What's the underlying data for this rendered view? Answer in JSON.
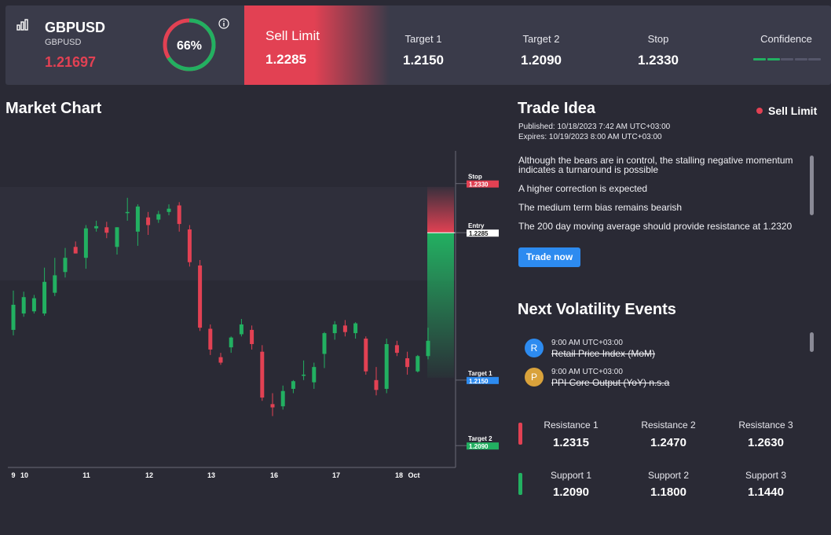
{
  "header": {
    "symbol": "GBPUSD",
    "symbol_sub": "GBPUSD",
    "price": "1.21697",
    "gauge_percent": 66,
    "gauge_text": "66%",
    "signal_label": "Sell Limit",
    "signal_value": "1.2285",
    "columns": [
      {
        "label": "Target 1",
        "value": "1.2150"
      },
      {
        "label": "Target 2",
        "value": "1.2090"
      },
      {
        "label": "Stop",
        "value": "1.2330"
      },
      {
        "label": "Confidence",
        "value": ""
      }
    ],
    "confidence_level": 2,
    "confidence_total": 5,
    "colors": {
      "sell": "#e24153",
      "buy": "#22b061",
      "confidence": "#22b061"
    }
  },
  "chart": {
    "title": "Market Chart",
    "x_ticks": [
      "9",
      "10",
      "11",
      "12",
      "13",
      "16",
      "17",
      "18",
      "Oct"
    ],
    "tags": {
      "stop": {
        "label": "Stop",
        "value": "1.2330"
      },
      "entry": {
        "label": "Entry",
        "value": "1.2285"
      },
      "target1": {
        "label": "Target 1",
        "value": "1.2150"
      },
      "target2": {
        "label": "Target 2",
        "value": "1.2090"
      }
    }
  },
  "chart_data": {
    "type": "candlestick",
    "ylim": [
      1.207,
      1.236
    ],
    "x_ticks": [
      "9",
      "10",
      "11",
      "12",
      "13",
      "16",
      "17",
      "18",
      "Oct"
    ],
    "levels": {
      "stop": 1.233,
      "entry": 1.2285,
      "target1": 1.215,
      "target2": 1.209
    },
    "colors": {
      "up": "#22b061",
      "down": "#e24153"
    },
    "candles": [
      {
        "o": 1.2196,
        "h": 1.2232,
        "l": 1.2191,
        "c": 1.2219
      },
      {
        "o": 1.2211,
        "h": 1.2231,
        "l": 1.2208,
        "c": 1.2226
      },
      {
        "o": 1.2213,
        "h": 1.2228,
        "l": 1.2211,
        "c": 1.2225
      },
      {
        "o": 1.2211,
        "h": 1.2253,
        "l": 1.2209,
        "c": 1.224
      },
      {
        "o": 1.223,
        "h": 1.2262,
        "l": 1.2227,
        "c": 1.2246
      },
      {
        "o": 1.2249,
        "h": 1.2271,
        "l": 1.2244,
        "c": 1.2262
      },
      {
        "o": 1.2272,
        "h": 1.2277,
        "l": 1.2266,
        "c": 1.2266
      },
      {
        "o": 1.2262,
        "h": 1.2292,
        "l": 1.2252,
        "c": 1.2289
      },
      {
        "o": 1.2289,
        "h": 1.2296,
        "l": 1.2286,
        "c": 1.2291
      },
      {
        "o": 1.229,
        "h": 1.2295,
        "l": 1.228,
        "c": 1.2285
      },
      {
        "o": 1.2272,
        "h": 1.229,
        "l": 1.2265,
        "c": 1.229
      },
      {
        "o": 1.2304,
        "h": 1.2317,
        "l": 1.2296,
        "c": 1.2304
      },
      {
        "o": 1.2286,
        "h": 1.2311,
        "l": 1.2273,
        "c": 1.2309
      },
      {
        "o": 1.2299,
        "h": 1.2304,
        "l": 1.2283,
        "c": 1.2292
      },
      {
        "o": 1.2297,
        "h": 1.2305,
        "l": 1.2294,
        "c": 1.2302
      },
      {
        "o": 1.2304,
        "h": 1.2311,
        "l": 1.2301,
        "c": 1.2307
      },
      {
        "o": 1.231,
        "h": 1.2313,
        "l": 1.2286,
        "c": 1.2293
      },
      {
        "o": 1.2288,
        "h": 1.2292,
        "l": 1.2254,
        "c": 1.2258
      },
      {
        "o": 1.2255,
        "h": 1.226,
        "l": 1.2195,
        "c": 1.2198
      },
      {
        "o": 1.2197,
        "h": 1.2201,
        "l": 1.2173,
        "c": 1.2178
      },
      {
        "o": 1.2171,
        "h": 1.2175,
        "l": 1.2164,
        "c": 1.2166
      },
      {
        "o": 1.218,
        "h": 1.219,
        "l": 1.2175,
        "c": 1.2189
      },
      {
        "o": 1.2192,
        "h": 1.2206,
        "l": 1.219,
        "c": 1.2201
      },
      {
        "o": 1.2196,
        "h": 1.22,
        "l": 1.2178,
        "c": 1.2183
      },
      {
        "o": 1.2176,
        "h": 1.2182,
        "l": 1.2131,
        "c": 1.2134
      },
      {
        "o": 1.2128,
        "h": 1.2138,
        "l": 1.2117,
        "c": 1.2125
      },
      {
        "o": 1.2126,
        "h": 1.2145,
        "l": 1.2123,
        "c": 1.214
      },
      {
        "o": 1.2142,
        "h": 1.215,
        "l": 1.2138,
        "c": 1.2149
      },
      {
        "o": 1.2155,
        "h": 1.2168,
        "l": 1.215,
        "c": 1.2155
      },
      {
        "o": 1.2148,
        "h": 1.2166,
        "l": 1.2142,
        "c": 1.2162
      },
      {
        "o": 1.2174,
        "h": 1.2194,
        "l": 1.2161,
        "c": 1.2193
      },
      {
        "o": 1.2193,
        "h": 1.2204,
        "l": 1.2187,
        "c": 1.2201
      },
      {
        "o": 1.22,
        "h": 1.2205,
        "l": 1.219,
        "c": 1.2194
      },
      {
        "o": 1.2193,
        "h": 1.2203,
        "l": 1.2188,
        "c": 1.2202
      },
      {
        "o": 1.2188,
        "h": 1.219,
        "l": 1.2155,
        "c": 1.2158
      },
      {
        "o": 1.215,
        "h": 1.2162,
        "l": 1.2136,
        "c": 1.2141
      },
      {
        "o": 1.2142,
        "h": 1.2188,
        "l": 1.2138,
        "c": 1.2183
      },
      {
        "o": 1.2182,
        "h": 1.2186,
        "l": 1.2172,
        "c": 1.2175
      },
      {
        "o": 1.217,
        "h": 1.2176,
        "l": 1.2155,
        "c": 1.2162
      },
      {
        "o": 1.2158,
        "h": 1.2173,
        "l": 1.2157,
        "c": 1.2172
      },
      {
        "o": 1.2172,
        "h": 1.2198,
        "l": 1.2169,
        "c": 1.2186
      }
    ]
  },
  "trade_idea": {
    "title": "Trade Idea",
    "badge": "Sell Limit",
    "published": "Published:  10/18/2023 7:42 AM UTC+03:00",
    "expires": "Expires:  10/19/2023 8:00 AM UTC+03:00",
    "points": [
      "Although the bears are in control, the stalling negative momentum indicates a turnaround is possible",
      "A higher correction is expected",
      "The medium term bias remains bearish",
      "The 200 day moving average should provide resistance at 1.2320"
    ],
    "button": "Trade now"
  },
  "volatility": {
    "title": "Next Volatility Events",
    "events": [
      {
        "badge": "R",
        "color": "#2d8bf0",
        "time": "9:00 AM UTC+03:00",
        "name": "Retail Price Index (MoM)"
      },
      {
        "badge": "P",
        "color": "#d9a23b",
        "time": "9:00 AM UTC+03:00",
        "name": "PPI Core Output (YoY) n.s.a"
      }
    ]
  },
  "levels": {
    "resistance": [
      {
        "label": "Resistance 1",
        "value": "1.2315"
      },
      {
        "label": "Resistance 2",
        "value": "1.2470"
      },
      {
        "label": "Resistance 3",
        "value": "1.2630"
      }
    ],
    "support": [
      {
        "label": "Support 1",
        "value": "1.2090"
      },
      {
        "label": "Support 2",
        "value": "1.1800"
      },
      {
        "label": "Support 3",
        "value": "1.1440"
      }
    ]
  }
}
